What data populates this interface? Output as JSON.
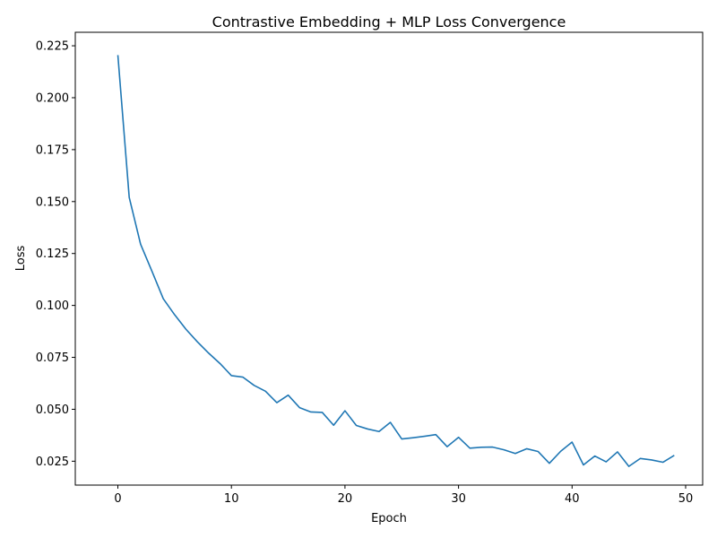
{
  "chart_data": {
    "type": "line",
    "title": "Contrastive Embedding + MLP Loss Convergence",
    "xlabel": "Epoch",
    "ylabel": "Loss",
    "xlim": [
      -3.75,
      51.5
    ],
    "ylim": [
      0.0135,
      0.2315
    ],
    "xticks": [
      0,
      10,
      20,
      30,
      40,
      50
    ],
    "xtick_labels": [
      "0",
      "10",
      "20",
      "30",
      "40",
      "50"
    ],
    "yticks": [
      0.025,
      0.05,
      0.075,
      0.1,
      0.125,
      0.15,
      0.175,
      0.2,
      0.225
    ],
    "ytick_labels": [
      "0.025",
      "0.050",
      "0.075",
      "0.100",
      "0.125",
      "0.150",
      "0.175",
      "0.200",
      "0.225"
    ],
    "grid": false,
    "series": [
      {
        "color": "#1f77b4",
        "x": [
          0,
          1,
          2,
          3,
          4,
          5,
          6,
          7,
          8,
          9,
          10,
          11,
          12,
          13,
          14,
          15,
          16,
          17,
          18,
          19,
          20,
          21,
          22,
          23,
          24,
          25,
          26,
          27,
          28,
          29,
          30,
          31,
          32,
          33,
          34,
          35,
          36,
          37,
          38,
          39,
          40,
          41,
          42,
          43,
          44,
          45,
          46,
          47,
          48,
          49
        ],
        "values": [
          0.2205,
          0.152,
          0.1295,
          0.1165,
          0.1032,
          0.0955,
          0.0885,
          0.0825,
          0.077,
          0.072,
          0.0662,
          0.0655,
          0.0615,
          0.0587,
          0.0532,
          0.0568,
          0.0508,
          0.0487,
          0.0485,
          0.0423,
          0.0493,
          0.0422,
          0.0405,
          0.0393,
          0.0437,
          0.0357,
          0.0363,
          0.037,
          0.0378,
          0.032,
          0.0365,
          0.0313,
          0.0317,
          0.0318,
          0.0305,
          0.0287,
          0.031,
          0.0297,
          0.024,
          0.0298,
          0.0342,
          0.0232,
          0.0275,
          0.0247,
          0.0295,
          0.0225,
          0.0263,
          0.0256,
          0.0245,
          0.0278
        ]
      }
    ]
  }
}
